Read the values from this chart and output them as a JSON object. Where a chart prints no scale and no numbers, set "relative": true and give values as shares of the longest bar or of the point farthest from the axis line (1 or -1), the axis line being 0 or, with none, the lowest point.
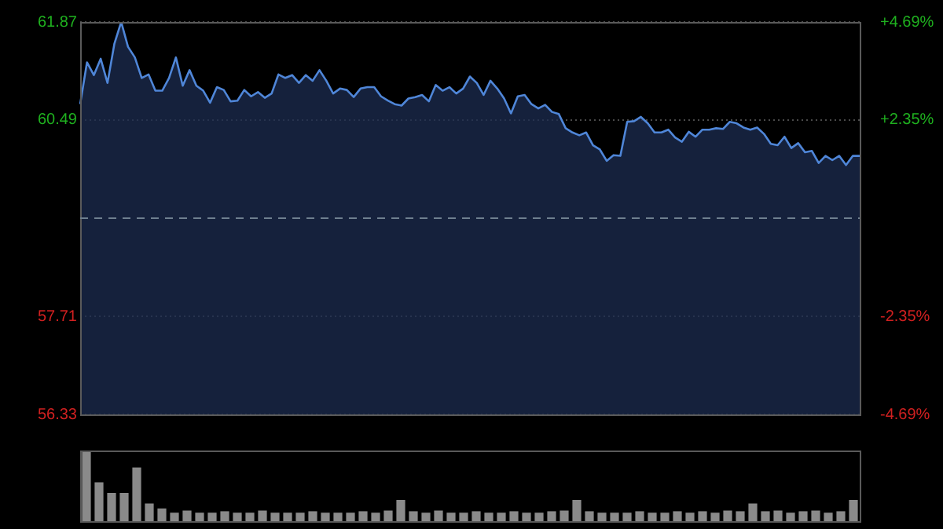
{
  "chart_data": [
    {
      "type": "area",
      "categories": [
        null,
        null,
        null,
        null,
        null,
        null,
        null,
        null,
        null,
        null,
        null,
        null,
        null,
        null,
        null,
        null,
        null,
        null,
        null,
        null,
        null,
        null,
        null,
        null,
        null,
        null,
        null,
        null,
        null,
        null,
        null,
        null,
        null,
        null,
        null,
        null,
        null,
        null,
        null,
        null,
        null,
        null,
        null,
        null,
        null,
        null,
        null,
        null,
        null,
        null,
        null,
        null,
        null,
        null,
        null,
        null,
        null,
        null,
        null,
        null,
        null,
        null,
        null,
        null,
        null,
        null,
        null,
        null,
        null,
        null,
        null,
        null,
        null,
        null,
        null,
        null,
        null,
        null,
        null,
        null,
        null,
        null,
        null,
        null,
        null,
        null,
        null,
        null,
        null,
        null,
        null,
        null,
        null,
        null,
        null,
        null,
        null,
        null,
        null,
        null,
        null,
        null,
        null,
        null,
        null,
        null,
        null,
        null,
        null,
        null,
        null,
        null,
        null,
        null,
        null
      ],
      "series": [
        {
          "color": "#4f86d8",
          "values": [
            60.71,
            61.3,
            61.12,
            61.35,
            61.01,
            61.56,
            61.87,
            61.52,
            61.37,
            61.08,
            61.13,
            60.9,
            60.9,
            61.08,
            61.37,
            60.97,
            61.19,
            60.97,
            60.9,
            60.73,
            60.95,
            60.91,
            60.75,
            60.76,
            60.91,
            60.82,
            60.88,
            60.8,
            60.86,
            61.13,
            61.08,
            61.12,
            61.01,
            61.12,
            61.04,
            61.19,
            61.04,
            60.86,
            60.93,
            60.91,
            60.81,
            60.93,
            60.95,
            60.95,
            60.82,
            60.76,
            60.71,
            60.69,
            60.79,
            60.81,
            60.84,
            60.75,
            60.98,
            60.9,
            60.95,
            60.86,
            60.93,
            61.1,
            61.01,
            60.84,
            61.04,
            60.93,
            60.79,
            60.58,
            60.82,
            60.84,
            60.71,
            60.65,
            60.7,
            60.6,
            60.57,
            60.37,
            60.31,
            60.27,
            60.31,
            60.13,
            60.07,
            59.91,
            59.99,
            59.98,
            60.46,
            60.47,
            60.53,
            60.44,
            60.31,
            60.31,
            60.35,
            60.24,
            60.18,
            60.32,
            60.25,
            60.35,
            60.35,
            60.37,
            60.36,
            60.46,
            60.44,
            60.38,
            60.35,
            60.38,
            60.29,
            60.15,
            60.13,
            60.25,
            60.09,
            60.16,
            60.03,
            60.05,
            59.88,
            59.98,
            59.92,
            59.98,
            59.85,
            59.98,
            59.98
          ]
        }
      ],
      "ylim": [
        56.33,
        61.87
      ],
      "yticks": [
        56.33,
        57.71,
        60.49,
        61.87
      ],
      "y2lim": [
        -4.69,
        4.69
      ],
      "y2ticks": [
        {
          "value": -4.69,
          "label": "-4.69%"
        },
        {
          "value": -2.35,
          "label": "-2.35%"
        },
        {
          "value": 2.35,
          "label": "+2.35%"
        },
        {
          "value": 4.69,
          "label": "+4.69%"
        }
      ],
      "ref_lines": [
        {
          "axis": "y",
          "value": 59.1,
          "color": "#6f7f8f",
          "line_style": "dashed"
        }
      ],
      "grid": "y",
      "tick_labels": "y",
      "legend": false
    },
    {
      "type": "bar",
      "relative": true,
      "categories": [
        null,
        null,
        null,
        null,
        null,
        null,
        null,
        null,
        null,
        null,
        null,
        null,
        null,
        null,
        null,
        null,
        null,
        null,
        null,
        null,
        null,
        null,
        null,
        null,
        null,
        null,
        null,
        null,
        null,
        null,
        null,
        null,
        null,
        null,
        null,
        null,
        null,
        null,
        null,
        null,
        null,
        null,
        null,
        null,
        null,
        null,
        null,
        null,
        null,
        null,
        null,
        null,
        null,
        null,
        null,
        null,
        null,
        null,
        null,
        null,
        null,
        null
      ],
      "values": [
        1,
        0.55,
        0.4,
        0.4,
        0.76,
        0.25,
        0.18,
        0.12,
        0.15,
        0.12,
        0.12,
        0.14,
        0.12,
        0.12,
        0.15,
        0.12,
        0.12,
        0.12,
        0.14,
        0.12,
        0.12,
        0.12,
        0.14,
        0.12,
        0.15,
        0.3,
        0.14,
        0.12,
        0.15,
        0.12,
        0.12,
        0.14,
        0.12,
        0.12,
        0.14,
        0.12,
        0.12,
        0.14,
        0.15,
        0.3,
        0.14,
        0.12,
        0.12,
        0.12,
        0.14,
        0.12,
        0.12,
        0.14,
        0.12,
        0.14,
        0.12,
        0.15,
        0.14,
        0.25,
        0.14,
        0.15,
        0.12,
        0.14,
        0.15,
        0.12,
        0.14,
        0.3
      ],
      "color": "#8a8a8a",
      "legend": false
    }
  ]
}
